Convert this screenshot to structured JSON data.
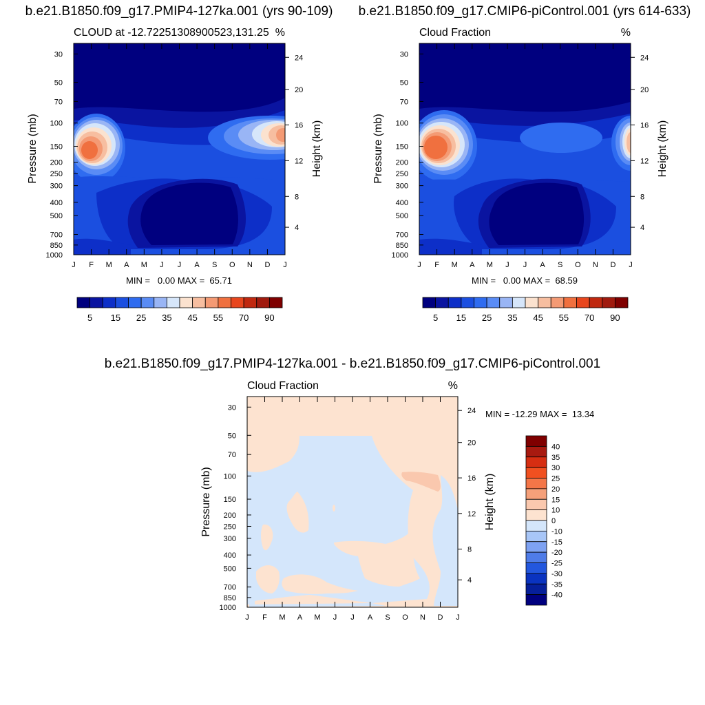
{
  "chart_data": [
    {
      "type": "heatmap",
      "title": "b.e21.B1850.f09_g17.PMIP4-127ka.001 (yrs 90-109)",
      "left_string": "CLOUD at -12.72251308900523,131.25",
      "right_string": "%",
      "xlabel": "",
      "ylabel": "Pressure (mb)",
      "ylabel_right": "Height (km)",
      "x_ticklabels": [
        "J",
        "F",
        "M",
        "A",
        "M",
        "J",
        "J",
        "A",
        "S",
        "O",
        "N",
        "D",
        "J"
      ],
      "y_ticklabels": [
        "30",
        "50",
        "70",
        "100",
        "150",
        "200",
        "250",
        "300",
        "400",
        "500",
        "700",
        "850",
        "1000"
      ],
      "y2_ticklabels": [
        "24",
        "20",
        "16",
        "12",
        "8",
        "4"
      ],
      "stats": "MIN =   0.00 MAX =  65.71",
      "min": 0.0,
      "max": 65.71,
      "colorbar_labels": [
        "5",
        "15",
        "25",
        "35",
        "45",
        "55",
        "70",
        "90"
      ]
    },
    {
      "type": "heatmap",
      "title": "b.e21.B1850.f09_g17.CMIP6-piControl.001 (yrs 614-633)",
      "left_string": "Cloud Fraction",
      "right_string": "%",
      "xlabel": "",
      "ylabel": "Pressure (mb)",
      "ylabel_right": "Height (km)",
      "x_ticklabels": [
        "J",
        "F",
        "M",
        "A",
        "M",
        "J",
        "J",
        "A",
        "S",
        "O",
        "N",
        "D",
        "J"
      ],
      "y_ticklabels": [
        "30",
        "50",
        "70",
        "100",
        "150",
        "200",
        "250",
        "300",
        "400",
        "500",
        "700",
        "850",
        "1000"
      ],
      "y2_ticklabels": [
        "24",
        "20",
        "16",
        "12",
        "8",
        "4"
      ],
      "stats": "MIN =   0.00 MAX =  68.59",
      "min": 0.0,
      "max": 68.59,
      "colorbar_labels": [
        "5",
        "15",
        "25",
        "35",
        "45",
        "55",
        "70",
        "90"
      ]
    },
    {
      "type": "heatmap",
      "title": "b.e21.B1850.f09_g17.PMIP4-127ka.001 - b.e21.B1850.f09_g17.CMIP6-piControl.001",
      "left_string": "Cloud Fraction",
      "right_string": "%",
      "xlabel": "",
      "ylabel": "Pressure (mb)",
      "ylabel_right": "Height (km)",
      "x_ticklabels": [
        "J",
        "F",
        "M",
        "A",
        "M",
        "J",
        "J",
        "A",
        "S",
        "O",
        "N",
        "D",
        "J"
      ],
      "y_ticklabels": [
        "30",
        "50",
        "70",
        "100",
        "150",
        "200",
        "250",
        "300",
        "400",
        "500",
        "700",
        "850",
        "1000"
      ],
      "y2_ticklabels": [
        "24",
        "20",
        "16",
        "12",
        "8",
        "4"
      ],
      "stats": "MIN = -12.29 MAX =  13.34",
      "min": -12.29,
      "max": 13.34,
      "colorbar_labels": [
        "40",
        "35",
        "30",
        "25",
        "20",
        "15",
        "10",
        "0",
        "-10",
        "-15",
        "-20",
        "-25",
        "-30",
        "-35",
        "-40"
      ]
    }
  ],
  "colors": {
    "seq": [
      "#00007f",
      "#0a14a0",
      "#0d2fc8",
      "#1b4fe0",
      "#2f6cf0",
      "#5a8cf5",
      "#99b5f5",
      "#d6e6fa",
      "#fbe2cf",
      "#f7bea0",
      "#f49a74",
      "#f0703f",
      "#e8461d",
      "#c0280f",
      "#a01a0e",
      "#7f0000"
    ],
    "div": [
      "#7f0000",
      "#a81a10",
      "#d62e12",
      "#f05020",
      "#f47648",
      "#f5a07a",
      "#fac8ae",
      "#fde3d0",
      "#d4e6fb",
      "#a8c6f7",
      "#7ea2f2",
      "#4f7ce8",
      "#2357de",
      "#0a33c0",
      "#061f9a",
      "#00007f"
    ]
  }
}
